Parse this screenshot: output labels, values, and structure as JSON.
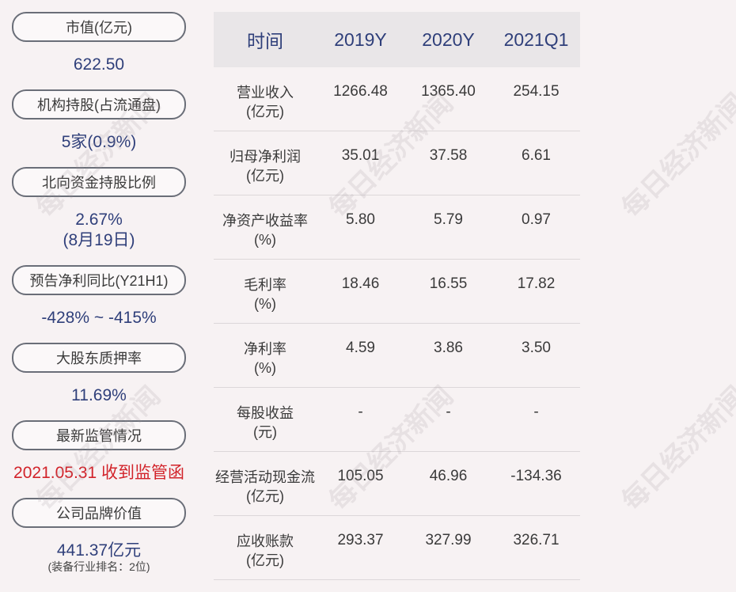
{
  "left": {
    "items": [
      {
        "label": "市值(亿元)",
        "value": "622.50"
      },
      {
        "label": "机构持股(占流通盘)",
        "value": "5家(0.9%)"
      },
      {
        "label": "北向资金持股比例",
        "value": "2.67%",
        "value2": "(8月19日)"
      },
      {
        "label": "预告净利同比(Y21H1)",
        "value": "-428% ~ -415%"
      },
      {
        "label": "大股东质押率",
        "value": "11.69%"
      },
      {
        "label": "最新监管情况",
        "value": "2021.05.31 收到监管函"
      },
      {
        "label": "公司品牌价值",
        "value": "441.37亿元",
        "note": "(装备行业排名：2位)"
      }
    ]
  },
  "table": {
    "headers": [
      "时间",
      "2019Y",
      "2020Y",
      "2021Q1"
    ],
    "rows": [
      {
        "label1": "营业收入",
        "label2": "(亿元)",
        "values": [
          "1266.48",
          "1365.40",
          "254.15"
        ]
      },
      {
        "label1": "归母净利润",
        "label2": "(亿元)",
        "values": [
          "35.01",
          "37.58",
          "6.61"
        ]
      },
      {
        "label1": "净资产收益率",
        "label2": "(%)",
        "values": [
          "5.80",
          "5.79",
          "0.97"
        ]
      },
      {
        "label1": "毛利率",
        "label2": "(%)",
        "values": [
          "18.46",
          "16.55",
          "17.82"
        ]
      },
      {
        "label1": "净利率",
        "label2": "(%)",
        "values": [
          "4.59",
          "3.86",
          "3.50"
        ]
      },
      {
        "label1": "每股收益",
        "label2": "(元)",
        "values": [
          "-",
          "-",
          "-"
        ]
      },
      {
        "label1": "经营活动现金流",
        "label2": "(亿元)",
        "values": [
          "105.05",
          "46.96",
          "-134.36"
        ]
      },
      {
        "label1": "应收账款",
        "label2": "(亿元)",
        "values": [
          "293.37",
          "327.99",
          "326.71"
        ]
      }
    ]
  },
  "watermark": "每日经济新闻",
  "colors": {
    "accent": "#2f3f7a",
    "alert": "#d2232a",
    "header_bg": "#e9e6e8",
    "page_bg": "#f7f2f3"
  }
}
